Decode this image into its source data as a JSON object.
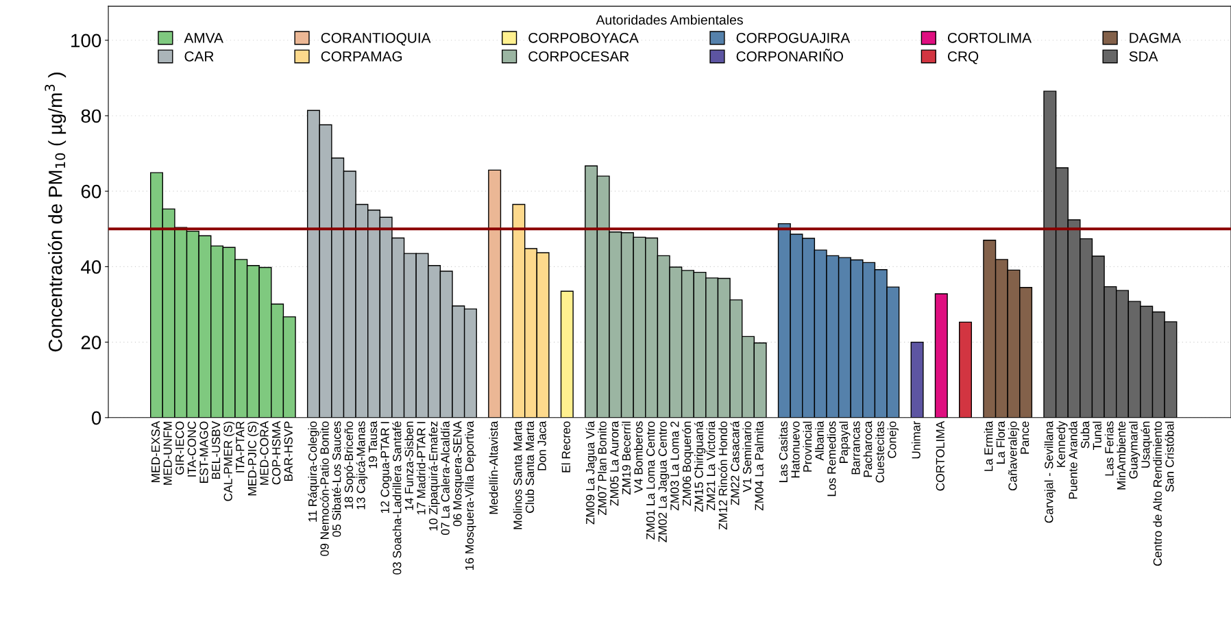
{
  "chart_data": {
    "type": "bar",
    "ylabel": "Concentración de PM$_{10}$ ( µg/m$^{3}$ )",
    "legend_title": "Autoridades Ambientales",
    "categories": [
      "MED-EXSA",
      "MED-UNFM",
      "GIR-IECO",
      "ITA-CONC",
      "EST-MAGO",
      "BEL-USBV",
      "CAL-PMER (S)",
      "ITA-PTAR",
      "MED-PJIC (S)",
      "MED-CORA",
      "COP-HSMA",
      "BAR-HSVP",
      null,
      "11 Ráquira-Colegio",
      "09 Nemocón-Patio Bonito",
      "05 Sibaté-Los Sauces",
      "18 Sopó-Briceño",
      "13 Cajicá-Manas",
      "19 Tausa",
      "12 Cogua-PTAR I",
      "03 Soacha-Ladrillera Santafé",
      "14 Funza-Sisben",
      "17 Madrid-PTAR I",
      "10 Zipaquirá-Emafez",
      "07 La Calera-Alcaldía",
      "06 Mosquera-SENA",
      "16 Mosquera-Villa Deportiva",
      null,
      "Medellín-Altavista",
      null,
      "Molinos Santa Marta",
      "Club Santa Marta",
      "Don Jaca",
      null,
      "El Recreo",
      null,
      "ZM09 La Jagua Vía",
      "ZM07 Plan Bonito",
      "ZM05 La Aurora",
      "ZM19 Becerril",
      "V4 Bomberos",
      "ZM01 La Loma Centro",
      "ZM02 La Jagua Centro",
      "ZM03 La Loma 2",
      "ZM06 Boquerón",
      "ZM15 Chiriguaná",
      "ZM21 La Victoria",
      "ZM12 Rincón Hondo",
      "ZM22 Casacará",
      "V1 Seminario",
      "ZM04 La Palmita",
      null,
      "Las Casitas",
      "Hatonuevo",
      "Provincial",
      "Albania",
      "Los Remedios",
      "Papayal",
      "Barrancas",
      "Pacharoca",
      "Cuestecitas",
      "Conejo",
      null,
      "Unimar",
      null,
      "CORTOLIMA",
      null,
      null,
      null,
      "La Ermita",
      "La Flora",
      "Cañaveralejo",
      "Pance",
      null,
      "Carvajal - Sevillana",
      "Kennedy",
      "Puente Aranda",
      "Suba",
      "Tunal",
      "Las Ferias",
      "MinAmbiente",
      "Guaymaral",
      "Usaquén",
      "Centro de Alto Rendimiento",
      "San Cristóbal"
    ],
    "series": [
      {
        "name": "AMVA",
        "color": "#7fc97f",
        "values": [
          64.9,
          55.3,
          50.4,
          49.4,
          48.2,
          45.5,
          45.1,
          41.9,
          40.3,
          39.8,
          30.1,
          26.7,
          null,
          null,
          null,
          null,
          null,
          null,
          null,
          null,
          null,
          null,
          null,
          null,
          null,
          null,
          null,
          null,
          null,
          null,
          null,
          null,
          null,
          null,
          null,
          null,
          null,
          null,
          null,
          null,
          null,
          null,
          null,
          null,
          null,
          null,
          null,
          null,
          null,
          null,
          null,
          null,
          null,
          null,
          null,
          null,
          null,
          null,
          null,
          null,
          null,
          null,
          null,
          null,
          null,
          null,
          null,
          null,
          null,
          null,
          null,
          null,
          null,
          null,
          null,
          null,
          null,
          null,
          null,
          null,
          null,
          null,
          null,
          null,
          null
        ]
      },
      {
        "name": "CAR",
        "color": "#abb5b9",
        "values": [
          null,
          null,
          null,
          null,
          null,
          null,
          null,
          null,
          null,
          null,
          null,
          null,
          null,
          81.4,
          77.6,
          68.8,
          65.3,
          56.5,
          55.0,
          53.1,
          47.6,
          43.5,
          43.5,
          40.3,
          38.8,
          29.6,
          28.8,
          null,
          null,
          null,
          null,
          null,
          null,
          null,
          null,
          null,
          null,
          null,
          null,
          null,
          null,
          null,
          null,
          null,
          null,
          null,
          null,
          null,
          null,
          null,
          null,
          null,
          null,
          null,
          null,
          null,
          null,
          null,
          null,
          null,
          null,
          null,
          null,
          null,
          null,
          null,
          null,
          null,
          null,
          null,
          null,
          null,
          null,
          null,
          null,
          null,
          null,
          null,
          null,
          null,
          null,
          null,
          null,
          null,
          null
        ]
      },
      {
        "name": "CORANTIOQUIA",
        "color": "#ebb795",
        "values": [
          null,
          null,
          null,
          null,
          null,
          null,
          null,
          null,
          null,
          null,
          null,
          null,
          null,
          null,
          null,
          null,
          null,
          null,
          null,
          null,
          null,
          null,
          null,
          null,
          null,
          null,
          null,
          null,
          65.6,
          null,
          null,
          null,
          null,
          null,
          null,
          null,
          null,
          null,
          null,
          null,
          null,
          null,
          null,
          null,
          null,
          null,
          null,
          null,
          null,
          null,
          null,
          null,
          null,
          null,
          null,
          null,
          null,
          null,
          null,
          null,
          null,
          null,
          null,
          null,
          null,
          null,
          null,
          null,
          null,
          null,
          null,
          null,
          null,
          null,
          null,
          null,
          null,
          null,
          null,
          null,
          null,
          null,
          null,
          null,
          null
        ]
      },
      {
        "name": "CORPAMAG",
        "color": "#fdd98c",
        "values": [
          null,
          null,
          null,
          null,
          null,
          null,
          null,
          null,
          null,
          null,
          null,
          null,
          null,
          null,
          null,
          null,
          null,
          null,
          null,
          null,
          null,
          null,
          null,
          null,
          null,
          null,
          null,
          null,
          null,
          null,
          56.5,
          44.8,
          43.7,
          null,
          null,
          null,
          null,
          null,
          null,
          null,
          null,
          null,
          null,
          null,
          null,
          null,
          null,
          null,
          null,
          null,
          null,
          null,
          null,
          null,
          null,
          null,
          null,
          null,
          null,
          null,
          null,
          null,
          null,
          null,
          null,
          null,
          null,
          null,
          null,
          null,
          null,
          null,
          null,
          null,
          null,
          null,
          null,
          null,
          null,
          null,
          null,
          null,
          null,
          null,
          null
        ]
      },
      {
        "name": "CORPOBOYACA",
        "color": "#fff08f",
        "values": [
          null,
          null,
          null,
          null,
          null,
          null,
          null,
          null,
          null,
          null,
          null,
          null,
          null,
          null,
          null,
          null,
          null,
          null,
          null,
          null,
          null,
          null,
          null,
          null,
          null,
          null,
          null,
          null,
          null,
          null,
          null,
          null,
          null,
          null,
          33.5,
          null,
          null,
          null,
          null,
          null,
          null,
          null,
          null,
          null,
          null,
          null,
          null,
          null,
          null,
          null,
          null,
          null,
          null,
          null,
          null,
          null,
          null,
          null,
          null,
          null,
          null,
          null,
          null,
          null,
          null,
          null,
          null,
          null,
          null,
          null,
          null,
          null,
          null,
          null,
          null,
          null,
          null,
          null,
          null,
          null,
          null,
          null,
          null,
          null,
          null
        ]
      },
      {
        "name": "CORPOCESAR",
        "color": "#9bb5a2",
        "values": [
          null,
          null,
          null,
          null,
          null,
          null,
          null,
          null,
          null,
          null,
          null,
          null,
          null,
          null,
          null,
          null,
          null,
          null,
          null,
          null,
          null,
          null,
          null,
          null,
          null,
          null,
          null,
          null,
          null,
          null,
          null,
          null,
          null,
          null,
          null,
          null,
          66.7,
          64.0,
          49.2,
          49.0,
          47.8,
          47.6,
          42.9,
          39.9,
          39.0,
          38.5,
          37.0,
          36.9,
          31.2,
          21.5,
          19.8,
          null,
          null,
          null,
          null,
          null,
          null,
          null,
          null,
          null,
          null,
          null,
          null,
          null,
          null,
          null,
          null,
          null,
          null,
          null,
          null,
          null,
          null,
          null,
          null,
          null,
          null,
          null,
          null,
          null,
          null,
          null,
          null,
          null,
          null
        ]
      },
      {
        "name": "CORPOGUAJIRA",
        "color": "#5581ab",
        "values": [
          null,
          null,
          null,
          null,
          null,
          null,
          null,
          null,
          null,
          null,
          null,
          null,
          null,
          null,
          null,
          null,
          null,
          null,
          null,
          null,
          null,
          null,
          null,
          null,
          null,
          null,
          null,
          null,
          null,
          null,
          null,
          null,
          null,
          null,
          null,
          null,
          null,
          null,
          null,
          null,
          null,
          null,
          null,
          null,
          null,
          null,
          null,
          null,
          null,
          null,
          null,
          null,
          51.4,
          48.6,
          47.5,
          44.4,
          42.9,
          42.4,
          41.8,
          41.1,
          39.2,
          34.6,
          null,
          null,
          null,
          null,
          null,
          null,
          null,
          null,
          null,
          null,
          null,
          null,
          null,
          null,
          null,
          null,
          null,
          null,
          null,
          null,
          null,
          null,
          null
        ]
      },
      {
        "name": "CORPONARIÑO",
        "color": "#5d55a2",
        "values": [
          null,
          null,
          null,
          null,
          null,
          null,
          null,
          null,
          null,
          null,
          null,
          null,
          null,
          null,
          null,
          null,
          null,
          null,
          null,
          null,
          null,
          null,
          null,
          null,
          null,
          null,
          null,
          null,
          null,
          null,
          null,
          null,
          null,
          null,
          null,
          null,
          null,
          null,
          null,
          null,
          null,
          null,
          null,
          null,
          null,
          null,
          null,
          null,
          null,
          null,
          null,
          null,
          null,
          null,
          null,
          null,
          null,
          null,
          null,
          null,
          null,
          null,
          null,
          20.0,
          null,
          null,
          null,
          null,
          null,
          null,
          null,
          null,
          null,
          null,
          null,
          null,
          null,
          null,
          null,
          null,
          null,
          null,
          null,
          null,
          null
        ]
      },
      {
        "name": "CORTOLIMA",
        "color": "#df0f80",
        "values": [
          null,
          null,
          null,
          null,
          null,
          null,
          null,
          null,
          null,
          null,
          null,
          null,
          null,
          null,
          null,
          null,
          null,
          null,
          null,
          null,
          null,
          null,
          null,
          null,
          null,
          null,
          null,
          null,
          null,
          null,
          null,
          null,
          null,
          null,
          null,
          null,
          null,
          null,
          null,
          null,
          null,
          null,
          null,
          null,
          null,
          null,
          null,
          null,
          null,
          null,
          null,
          null,
          null,
          null,
          null,
          null,
          null,
          null,
          null,
          null,
          null,
          null,
          null,
          null,
          null,
          32.8,
          null,
          null,
          null,
          null,
          null,
          null,
          null,
          null,
          null,
          null,
          null,
          null,
          null,
          null,
          null,
          null,
          null,
          null,
          null
        ]
      },
      {
        "name": "CRQ",
        "color": "#d23541",
        "values": [
          null,
          null,
          null,
          null,
          null,
          null,
          null,
          null,
          null,
          null,
          null,
          null,
          null,
          null,
          null,
          null,
          null,
          null,
          null,
          null,
          null,
          null,
          null,
          null,
          null,
          null,
          null,
          null,
          null,
          null,
          null,
          null,
          null,
          null,
          null,
          null,
          null,
          null,
          null,
          null,
          null,
          null,
          null,
          null,
          null,
          null,
          null,
          null,
          null,
          null,
          null,
          null,
          null,
          null,
          null,
          null,
          null,
          null,
          null,
          null,
          null,
          null,
          null,
          null,
          null,
          null,
          null,
          25.3,
          null,
          null,
          null,
          null,
          null,
          null,
          null,
          null,
          null,
          null,
          null,
          null,
          null,
          null,
          null,
          null,
          null
        ]
      },
      {
        "name": "DAGMA",
        "color": "#83614a",
        "values": [
          null,
          null,
          null,
          null,
          null,
          null,
          null,
          null,
          null,
          null,
          null,
          null,
          null,
          null,
          null,
          null,
          null,
          null,
          null,
          null,
          null,
          null,
          null,
          null,
          null,
          null,
          null,
          null,
          null,
          null,
          null,
          null,
          null,
          null,
          null,
          null,
          null,
          null,
          null,
          null,
          null,
          null,
          null,
          null,
          null,
          null,
          null,
          null,
          null,
          null,
          null,
          null,
          null,
          null,
          null,
          null,
          null,
          null,
          null,
          null,
          null,
          null,
          null,
          null,
          null,
          null,
          null,
          null,
          null,
          47.0,
          41.9,
          39.1,
          34.5,
          null,
          null,
          null,
          null,
          null,
          null,
          null,
          null,
          null,
          null,
          null,
          null
        ]
      },
      {
        "name": "SDA",
        "color": "#666666",
        "values": [
          null,
          null,
          null,
          null,
          null,
          null,
          null,
          null,
          null,
          null,
          null,
          null,
          null,
          null,
          null,
          null,
          null,
          null,
          null,
          null,
          null,
          null,
          null,
          null,
          null,
          null,
          null,
          null,
          null,
          null,
          null,
          null,
          null,
          null,
          null,
          null,
          null,
          null,
          null,
          null,
          null,
          null,
          null,
          null,
          null,
          null,
          null,
          null,
          null,
          null,
          null,
          null,
          null,
          null,
          null,
          null,
          null,
          null,
          null,
          null,
          null,
          null,
          null,
          null,
          null,
          null,
          null,
          null,
          null,
          null,
          null,
          null,
          null,
          null,
          86.5,
          66.2,
          52.4,
          47.4,
          42.8,
          34.7,
          33.7,
          30.8,
          29.5,
          28.0,
          25.4
        ]
      }
    ],
    "ylim": [
      0,
      109
    ],
    "yticks": [
      0,
      20,
      40,
      60,
      80,
      100
    ],
    "grid": "y",
    "legend": "top",
    "ref_lines": [
      {
        "axis": "y",
        "value": 50,
        "color": "#8b0000"
      }
    ]
  }
}
